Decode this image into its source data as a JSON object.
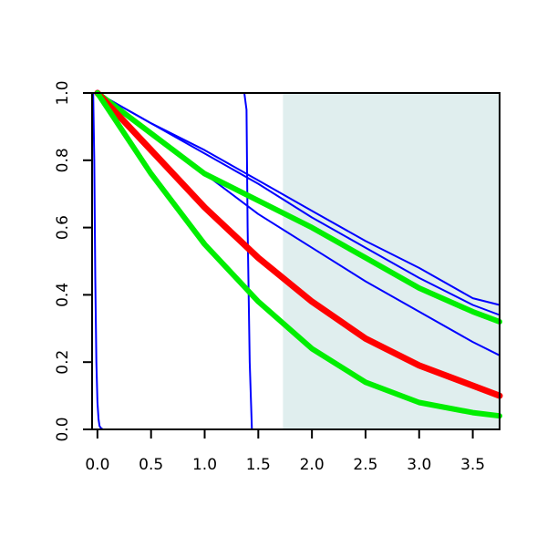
{
  "chart_data": {
    "type": "line",
    "title": "",
    "xlabel": "",
    "ylabel": "",
    "xlim": [
      -0.05,
      3.75
    ],
    "ylim": [
      0.0,
      1.0
    ],
    "grid": false,
    "legend": "none",
    "x_ticks": [
      0.0,
      0.5,
      1.0,
      1.5,
      2.0,
      2.5,
      3.0,
      3.5
    ],
    "x_tick_labels": [
      "0.0",
      "0.5",
      "1.0",
      "1.5",
      "2.0",
      "2.5",
      "3.0",
      "3.5"
    ],
    "y_ticks": [
      0.0,
      0.2,
      0.4,
      0.6,
      0.8,
      1.0
    ],
    "y_tick_labels": [
      "0.0",
      "0.2",
      "0.4",
      "0.6",
      "0.8",
      "1.0"
    ],
    "shaded_region": {
      "x_from": 1.73,
      "x_to": 3.75,
      "color": "#e0eeee"
    },
    "series": [
      {
        "color": "#0000ff",
        "width": 2,
        "x": [
          -0.04,
          -0.03,
          -0.02,
          -0.01,
          0.0,
          0.01,
          0.02,
          0.03,
          0.05,
          0.08,
          3.75
        ],
        "y": [
          1.0,
          0.8,
          0.45,
          0.2,
          0.08,
          0.03,
          0.01,
          0.005,
          0.0,
          0.0,
          0.0
        ]
      },
      {
        "color": "#0000ff",
        "width": 2,
        "x": [
          -0.05,
          1.37,
          1.39,
          1.4,
          1.42,
          1.44,
          3.75
        ],
        "y": [
          1.0,
          1.0,
          0.95,
          0.6,
          0.2,
          0.0,
          0.0
        ]
      },
      {
        "color": "#0000ff",
        "width": 2,
        "x": [
          0.0,
          0.5,
          1.0,
          1.5,
          2.0,
          2.5,
          3.0,
          3.5,
          3.75
        ],
        "y": [
          1.0,
          0.91,
          0.83,
          0.74,
          0.65,
          0.56,
          0.48,
          0.39,
          0.37
        ]
      },
      {
        "color": "#0000ff",
        "width": 2,
        "x": [
          0.0,
          0.5,
          1.0,
          1.5,
          2.0,
          2.5,
          3.0,
          3.5,
          3.75
        ],
        "y": [
          1.0,
          0.91,
          0.82,
          0.73,
          0.63,
          0.54,
          0.45,
          0.37,
          0.34
        ]
      },
      {
        "color": "#0000ff",
        "width": 2,
        "x": [
          0.0,
          0.5,
          1.0,
          1.5,
          2.0,
          2.5,
          3.0,
          3.5,
          3.75
        ],
        "y": [
          1.0,
          0.88,
          0.76,
          0.64,
          0.54,
          0.44,
          0.35,
          0.26,
          0.22
        ]
      },
      {
        "color": "#00ee00",
        "width": 6,
        "x": [
          0.0,
          0.5,
          1.0,
          1.5,
          2.0,
          2.5,
          3.0,
          3.5,
          3.75
        ],
        "y": [
          1.0,
          0.88,
          0.76,
          0.68,
          0.6,
          0.51,
          0.42,
          0.35,
          0.32
        ]
      },
      {
        "color": "#ff0000",
        "width": 7,
        "x": [
          0.0,
          0.5,
          1.0,
          1.5,
          2.0,
          2.5,
          3.0,
          3.5,
          3.75
        ],
        "y": [
          1.0,
          0.83,
          0.66,
          0.51,
          0.38,
          0.27,
          0.19,
          0.13,
          0.1
        ]
      },
      {
        "color": "#00ee00",
        "width": 6,
        "x": [
          0.0,
          0.5,
          1.0,
          1.5,
          2.0,
          2.5,
          3.0,
          3.5,
          3.75
        ],
        "y": [
          1.0,
          0.76,
          0.55,
          0.38,
          0.24,
          0.14,
          0.08,
          0.05,
          0.04
        ]
      }
    ]
  }
}
